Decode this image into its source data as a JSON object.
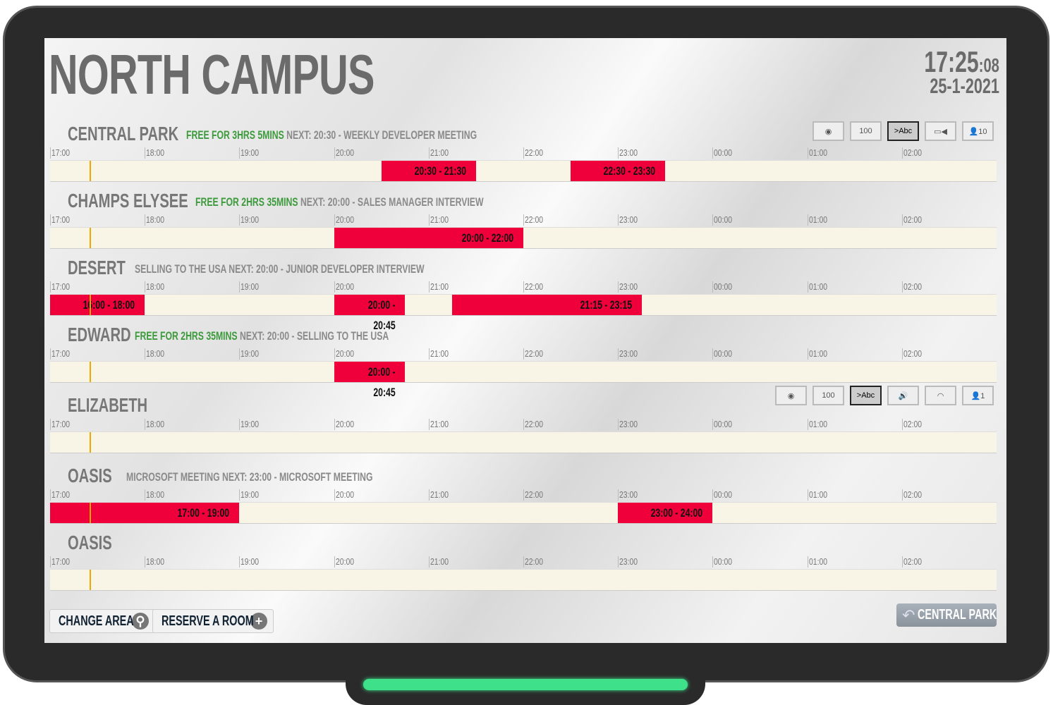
{
  "header": {
    "title": "NORTH CAMPUS",
    "time_hm": "17:25",
    "time_s": ":08",
    "date": "25-1-2021"
  },
  "timeline": {
    "hours": [
      "17:00",
      "18:00",
      "19:00",
      "20:00",
      "21:00",
      "22:00",
      "23:00",
      "00:00",
      "01:00",
      "02:00"
    ],
    "now": "17:25"
  },
  "colors": {
    "booked": "#f0003a",
    "free_text": "#3c9a3c",
    "now_marker": "#f0a800"
  },
  "rooms": [
    {
      "name": "CENTRAL PARK",
      "status_free": "FREE FOR 3HRS 5MINS",
      "status": "",
      "next": "NEXT: 20:30 - WEEKLY DEVELOPER MEETING",
      "icons": [
        "projector-icon",
        "whiteboard-icon",
        "display-icon",
        "video-camera-icon",
        "capacity-icon"
      ],
      "capacity": "10",
      "bookings": [
        {
          "label": "20:30 - 21:30",
          "start": 20.5,
          "end": 21.5
        },
        {
          "label": "22:30 - 23:30",
          "start": 22.5,
          "end": 23.5
        }
      ]
    },
    {
      "name": "CHAMPS ELYSEE",
      "status_free": "FREE FOR 2HRS 35MINS",
      "status": "",
      "next": "NEXT: 20:00 - SALES MANAGER INTERVIEW",
      "bookings": [
        {
          "label": "20:00 - 22:00",
          "start": 20,
          "end": 22
        }
      ]
    },
    {
      "name": "DESERT",
      "status_free": "",
      "status": "SELLING TO THE USA",
      "next": "NEXT: 20:00 - JUNIOR DEVELOPER INTERVIEW",
      "bookings": [
        {
          "label": "16:00 - 18:00",
          "start": 16,
          "end": 18
        },
        {
          "label": "20:00 - 20:45",
          "start": 20,
          "end": 20.75
        },
        {
          "label": "21:15 - 23:15",
          "start": 21.25,
          "end": 23.25
        }
      ]
    },
    {
      "name": "EDWARD",
      "status_free": "FREE FOR 2HRS 35MINS",
      "status": "",
      "next": "NEXT: 20:00 - SELLING TO THE USA",
      "bookings": [
        {
          "label": "20:00 - 20:45",
          "start": 20,
          "end": 20.75
        }
      ]
    },
    {
      "name": "ELIZABETH",
      "status_free": "",
      "status": "",
      "next": "",
      "icons": [
        "projector-icon",
        "whiteboard-icon",
        "display-icon",
        "speaker-icon",
        "wifi-icon",
        "capacity-icon"
      ],
      "capacity": "1",
      "bookings": []
    },
    {
      "name": "OASIS",
      "status_free": "",
      "status": "MICROSOFT MEETING",
      "next": "NEXT: 23:00 - MICROSOFT MEETING",
      "bookings": [
        {
          "label": "17:00 - 19:00",
          "start": 17,
          "end": 19
        },
        {
          "label": "23:00 - 24:00",
          "start": 23,
          "end": 24
        }
      ]
    },
    {
      "name": "OASIS",
      "status_free": "",
      "status": "",
      "next": "",
      "bookings": []
    }
  ],
  "footer": {
    "change_area": "CHANGE AREA",
    "reserve_room": "RESERVE A ROOM",
    "back_label": "CENTRAL PARK"
  }
}
